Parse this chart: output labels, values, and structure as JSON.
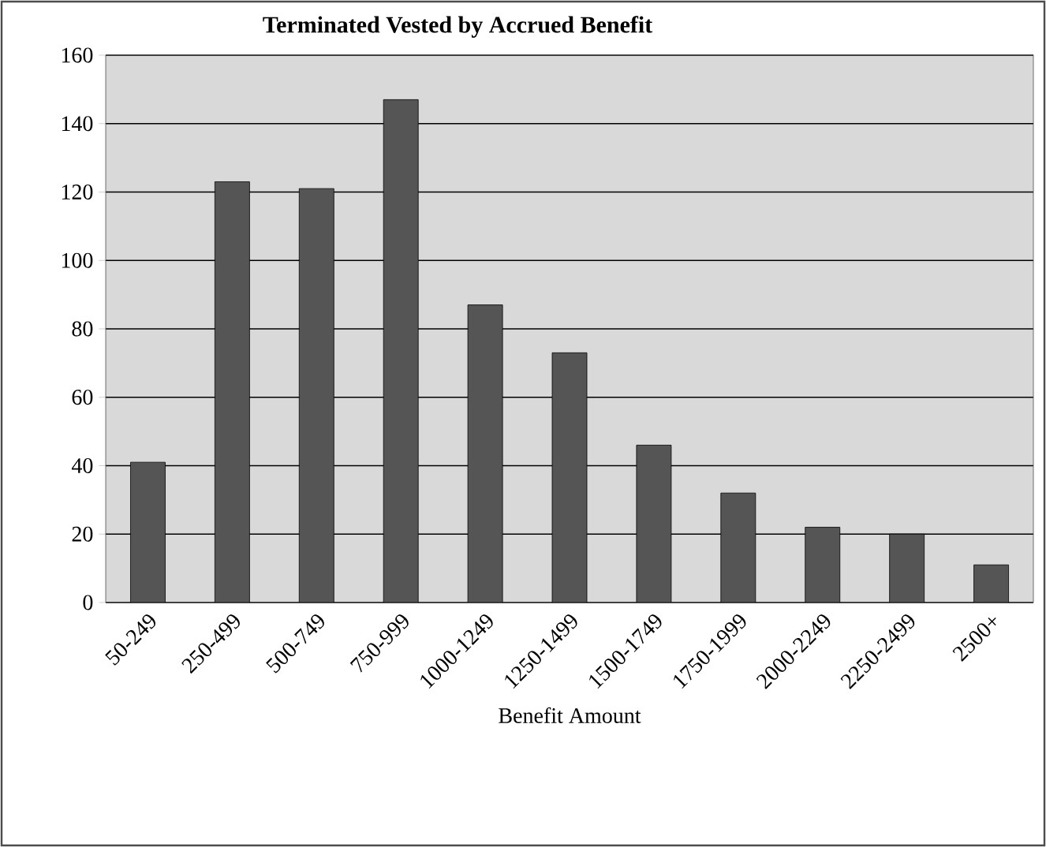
{
  "chart_data": {
    "type": "bar",
    "title": "Terminated Vested by Accrued Benefit",
    "xlabel": "Benefit Amount",
    "categories": [
      "50-249",
      "250-499",
      "500-749",
      "750-999",
      "1000-1249",
      "1250-1499",
      "1500-1749",
      "1750-1999",
      "2000-2249",
      "2250-2499",
      "2500+"
    ],
    "values": [
      41,
      123,
      121,
      147,
      87,
      73,
      46,
      32,
      22,
      20,
      11
    ],
    "color": "#555555",
    "ylim": [
      0,
      160
    ],
    "yticks": [
      0,
      20,
      40,
      60,
      80,
      100,
      120,
      140,
      160
    ],
    "grid": "y"
  }
}
